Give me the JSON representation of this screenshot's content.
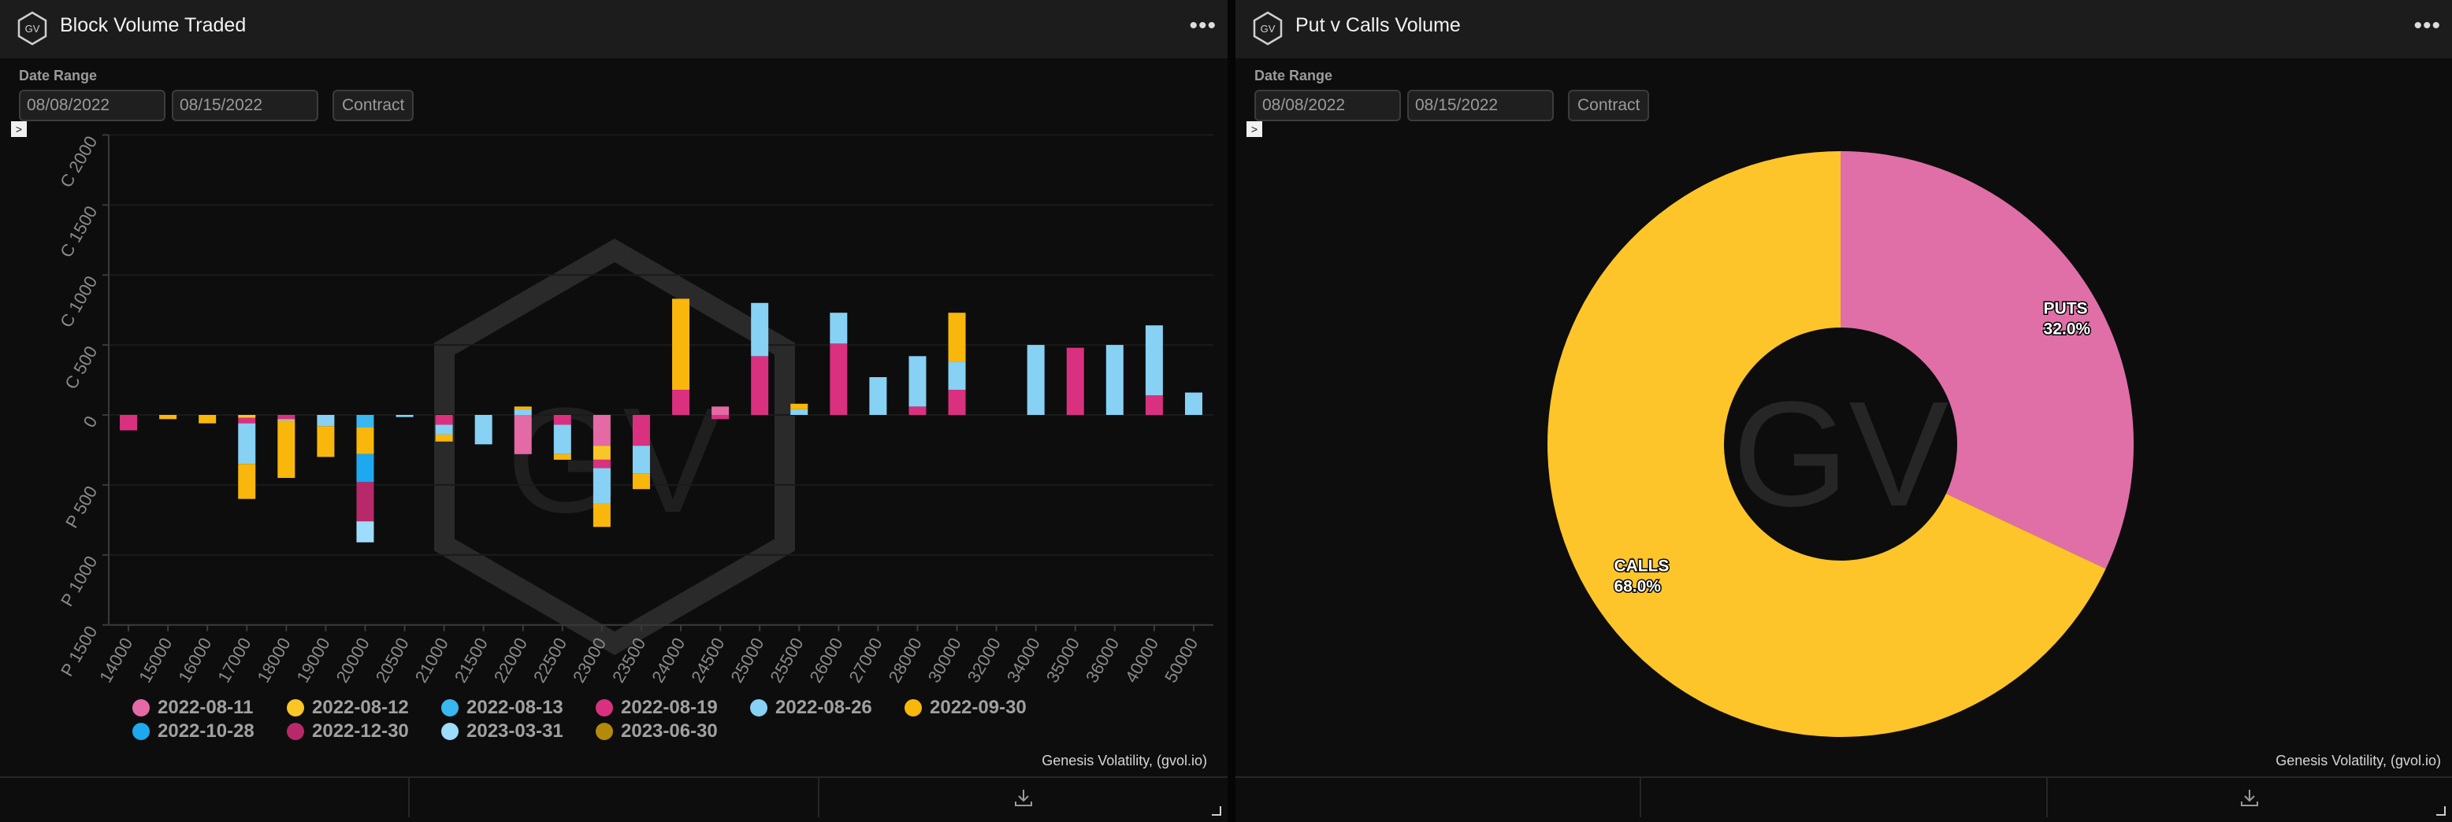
{
  "colors": {
    "c1": "#e46aa6",
    "c2": "#f9c627",
    "c3": "#38b8ee",
    "c4": "#d9317f",
    "c5": "#86d1f4",
    "c6": "#f8b70a",
    "c7": "#1da9f0",
    "c8": "#b72968",
    "c9": "#9ddcfb",
    "c10": "#b48a0b",
    "puts": "#e06fa7",
    "calls": "#fdc52a"
  },
  "left_panel": {
    "logo_text": "GV",
    "title": "Block Volume Traded",
    "menu_icon": "more-horizontal-icon",
    "menu_glyph": "•••",
    "date_label": "Date Range",
    "start_date": "08/08/2022",
    "end_date": "08/15/2022",
    "contract_label": "Contract",
    "expand_glyph": ">",
    "attribution": "Genesis Volatility, (gvol.io)",
    "watermark": "GV"
  },
  "right_panel": {
    "logo_text": "GV",
    "title": "Put v Calls Volume",
    "menu_icon": "more-horizontal-icon",
    "menu_glyph": "•••",
    "date_label": "Date Range",
    "start_date": "08/08/2022",
    "end_date": "08/15/2022",
    "contract_label": "Contract",
    "expand_glyph": ">",
    "attribution": "Genesis Volatility, (gvol.io)",
    "watermark": "GV"
  },
  "chart_data": [
    {
      "type": "bar",
      "stacked": true,
      "title": "",
      "xlabel": "",
      "ylabel": "",
      "ylim": [
        -1500,
        2000
      ],
      "y_ticks": [
        {
          "value": 2000,
          "label": "C 2000"
        },
        {
          "value": 1500,
          "label": "C 1500"
        },
        {
          "value": 1000,
          "label": "C 1000"
        },
        {
          "value": 500,
          "label": "C 500"
        },
        {
          "value": 0,
          "label": "0"
        },
        {
          "value": -500,
          "label": "P 500"
        },
        {
          "value": -1000,
          "label": "P 1000"
        },
        {
          "value": -1500,
          "label": "P 1500"
        }
      ],
      "categories": [
        "14000",
        "15000",
        "16000",
        "17000",
        "18000",
        "19000",
        "20000",
        "20500",
        "21000",
        "21500",
        "22000",
        "22500",
        "23000",
        "23500",
        "24000",
        "24500",
        "25000",
        "25500",
        "26000",
        "27000",
        "28000",
        "30000",
        "32000",
        "34000",
        "35000",
        "36000",
        "40000",
        "50000"
      ],
      "legend_position": "bottom-left",
      "series": [
        {
          "name": "2022-08-11",
          "color_key": "c1",
          "values": [
            0,
            0,
            0,
            0,
            0,
            0,
            0,
            0,
            0,
            0,
            -280,
            0,
            -220,
            0,
            0,
            60,
            0,
            0,
            0,
            0,
            0,
            0,
            0,
            0,
            0,
            0,
            0,
            0
          ]
        },
        {
          "name": "2022-08-12",
          "color_key": "c2",
          "values": [
            0,
            0,
            0,
            -20,
            0,
            0,
            0,
            0,
            0,
            0,
            0,
            0,
            -100,
            0,
            0,
            0,
            0,
            0,
            0,
            0,
            0,
            0,
            0,
            0,
            0,
            0,
            0,
            0
          ]
        },
        {
          "name": "2022-08-13",
          "color_key": "c3",
          "values": [
            0,
            0,
            0,
            0,
            0,
            0,
            -90,
            0,
            0,
            0,
            0,
            0,
            0,
            0,
            0,
            0,
            0,
            0,
            0,
            0,
            0,
            0,
            0,
            0,
            0,
            0,
            0,
            0
          ]
        },
        {
          "name": "2022-08-19",
          "color_key": "c4",
          "values": [
            -110,
            0,
            0,
            -40,
            -30,
            0,
            0,
            0,
            -70,
            0,
            0,
            -70,
            -60,
            -220,
            180,
            -30,
            420,
            0,
            510,
            0,
            60,
            180,
            0,
            0,
            480,
            0,
            140,
            0
          ]
        },
        {
          "name": "2022-08-26",
          "color_key": "c5",
          "values": [
            0,
            0,
            0,
            -290,
            -10,
            -80,
            0,
            -15,
            -70,
            -210,
            40,
            -210,
            -250,
            -200,
            0,
            0,
            380,
            40,
            220,
            270,
            360,
            200,
            0,
            500,
            0,
            500,
            500,
            160
          ]
        },
        {
          "name": "2022-09-30",
          "color_key": "c6",
          "values": [
            0,
            -30,
            -60,
            -250,
            -410,
            -220,
            -190,
            0,
            -50,
            0,
            20,
            -40,
            -170,
            -110,
            650,
            0,
            0,
            40,
            0,
            0,
            0,
            350,
            0,
            0,
            0,
            0,
            0,
            0
          ]
        },
        {
          "name": "2022-10-28",
          "color_key": "c7",
          "values": [
            0,
            0,
            0,
            0,
            0,
            0,
            -200,
            0,
            0,
            0,
            0,
            0,
            0,
            0,
            0,
            0,
            0,
            0,
            0,
            0,
            0,
            0,
            0,
            0,
            0,
            0,
            0,
            0
          ]
        },
        {
          "name": "2022-12-30",
          "color_key": "c8",
          "values": [
            0,
            0,
            0,
            0,
            0,
            0,
            -280,
            0,
            0,
            0,
            0,
            0,
            0,
            0,
            0,
            0,
            0,
            0,
            0,
            0,
            0,
            0,
            0,
            0,
            0,
            0,
            0,
            0
          ]
        },
        {
          "name": "2023-03-31",
          "color_key": "c9",
          "values": [
            0,
            0,
            0,
            0,
            0,
            0,
            -150,
            0,
            0,
            0,
            0,
            0,
            0,
            0,
            0,
            0,
            0,
            0,
            0,
            0,
            0,
            0,
            0,
            0,
            0,
            0,
            0,
            0
          ]
        },
        {
          "name": "2023-06-30",
          "color_key": "c10",
          "values": [
            0,
            0,
            0,
            0,
            0,
            0,
            0,
            0,
            0,
            0,
            0,
            0,
            0,
            0,
            0,
            0,
            0,
            0,
            0,
            0,
            0,
            0,
            0,
            0,
            0,
            0,
            0,
            0
          ]
        }
      ]
    },
    {
      "type": "pie",
      "donut": true,
      "title": "",
      "slices": [
        {
          "label": "PUTS",
          "value": 32.0,
          "display": "32.0%",
          "color_key": "puts"
        },
        {
          "label": "CALLS",
          "value": 68.0,
          "display": "68.0%",
          "color_key": "calls"
        }
      ]
    }
  ]
}
